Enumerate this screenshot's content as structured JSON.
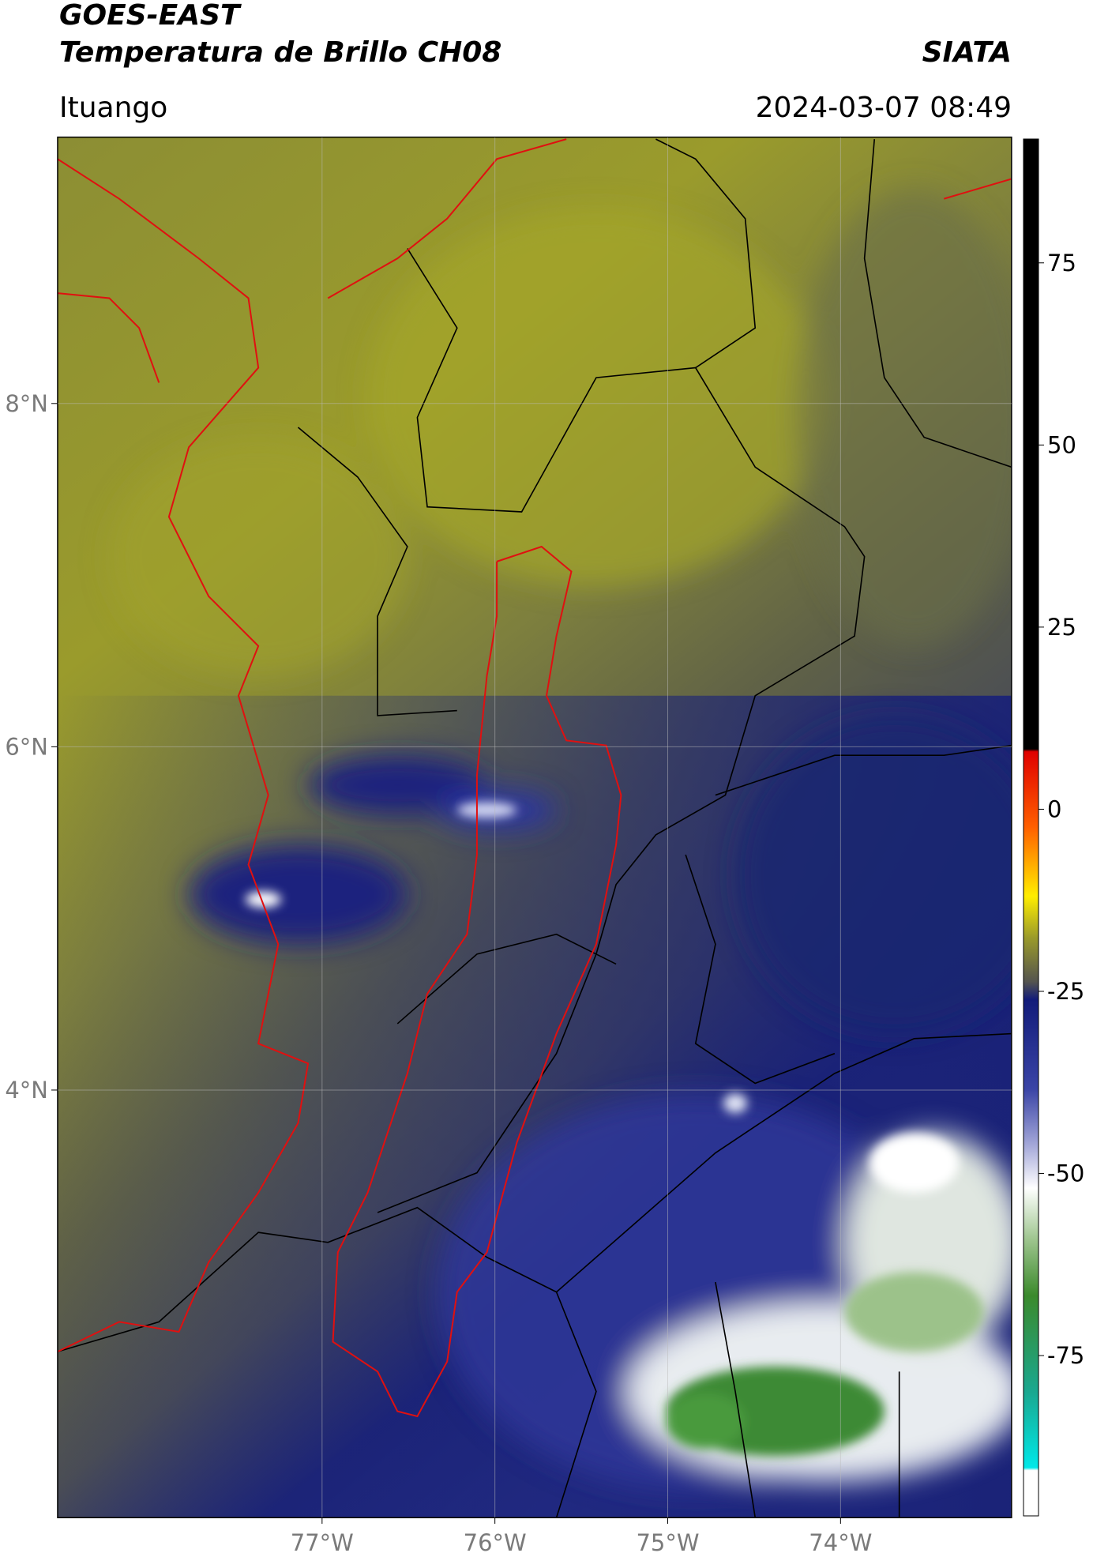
{
  "header": {
    "title": "GOES-EAST",
    "subtitle": "Temperatura de Brillo CH08",
    "source": "SIATA",
    "location": "Ituango",
    "datetime": "2024-03-07 08:49"
  },
  "map": {
    "xlim": [
      -78.53,
      -73.01
    ],
    "ylim": [
      1.51,
      9.55
    ],
    "xticks": [
      {
        "value": -77,
        "label": "77°W"
      },
      {
        "value": -76,
        "label": "76°W"
      },
      {
        "value": -75,
        "label": "75°W"
      },
      {
        "value": -74,
        "label": "74°W"
      }
    ],
    "yticks": [
      {
        "value": 8,
        "label": "8°N"
      },
      {
        "value": 6,
        "label": "6°N"
      },
      {
        "value": 4,
        "label": "4°N"
      }
    ],
    "grid": true
  },
  "colorbar": {
    "lim": [
      -97,
      92
    ],
    "ticks": [
      75,
      50,
      25,
      0,
      -25,
      -50,
      -75
    ]
  }
}
